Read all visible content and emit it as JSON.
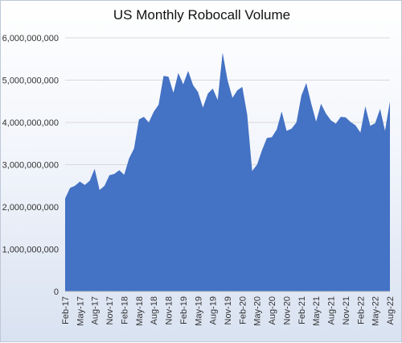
{
  "chart_data": {
    "type": "area",
    "title": "US Monthly Robocall Volume",
    "xlabel": "",
    "ylabel": "",
    "ylim": [
      0,
      6000000000
    ],
    "yticks": [
      0,
      1000000000,
      2000000000,
      3000000000,
      4000000000,
      5000000000,
      6000000000
    ],
    "ytick_labels": [
      "0",
      "1,000,000,000",
      "2,000,000,000",
      "3,000,000,000",
      "4,000,000,000",
      "5,000,000,000",
      "6,000,000,000"
    ],
    "grid": true,
    "color": "#4472c4",
    "x": [
      "Feb-17",
      "Mar-17",
      "Apr-17",
      "May-17",
      "Jun-17",
      "Jul-17",
      "Aug-17",
      "Sep-17",
      "Oct-17",
      "Nov-17",
      "Dec-17",
      "Jan-18",
      "Feb-18",
      "Mar-18",
      "Apr-18",
      "May-18",
      "Jun-18",
      "Jul-18",
      "Aug-18",
      "Sep-18",
      "Oct-18",
      "Nov-18",
      "Dec-18",
      "Jan-19",
      "Feb-19",
      "Mar-19",
      "Apr-19",
      "May-19",
      "Jun-19",
      "Jul-19",
      "Aug-19",
      "Sep-19",
      "Oct-19",
      "Nov-19",
      "Dec-19",
      "Jan-20",
      "Feb-20",
      "Mar-20",
      "Apr-20",
      "May-20",
      "Jun-20",
      "Jul-20",
      "Aug-20",
      "Sep-20",
      "Oct-20",
      "Nov-20",
      "Dec-20",
      "Jan-21",
      "Feb-21",
      "Mar-21",
      "Apr-21",
      "May-21",
      "Jun-21",
      "Jul-21",
      "Aug-21",
      "Sep-21",
      "Oct-21",
      "Nov-21",
      "Dec-21",
      "Jan-22",
      "Feb-22",
      "Mar-22",
      "Apr-22",
      "May-22",
      "Jun-22",
      "Jul-22",
      "Aug-22"
    ],
    "xtick_labels": [
      "Feb-17",
      "May-17",
      "Aug-17",
      "Nov-17",
      "Feb-18",
      "May-18",
      "Aug-18",
      "Nov-18",
      "Feb-19",
      "May-19",
      "Aug-19",
      "Nov-19",
      "Feb-20",
      "May-20",
      "Aug-20",
      "Nov-20",
      "Feb-21",
      "May-21",
      "Aug-21",
      "Nov-21",
      "Feb-22",
      "May-22",
      "Aug-22"
    ],
    "values": [
      2200000000,
      2450000000,
      2500000000,
      2600000000,
      2520000000,
      2620000000,
      2900000000,
      2400000000,
      2500000000,
      2750000000,
      2780000000,
      2870000000,
      2760000000,
      3150000000,
      3380000000,
      4070000000,
      4130000000,
      4000000000,
      4250000000,
      4420000000,
      5100000000,
      5080000000,
      4700000000,
      5170000000,
      4900000000,
      5220000000,
      4880000000,
      4720000000,
      4350000000,
      4680000000,
      4800000000,
      4530000000,
      5650000000,
      5000000000,
      4580000000,
      4760000000,
      4840000000,
      4180000000,
      2850000000,
      3000000000,
      3340000000,
      3630000000,
      3650000000,
      3830000000,
      4260000000,
      3800000000,
      3850000000,
      4000000000,
      4630000000,
      4930000000,
      4450000000,
      4020000000,
      4440000000,
      4210000000,
      4050000000,
      3970000000,
      4130000000,
      4120000000,
      4010000000,
      3930000000,
      3760000000,
      4380000000,
      3920000000,
      3980000000,
      4320000000,
      3800000000,
      4500000000
    ]
  }
}
